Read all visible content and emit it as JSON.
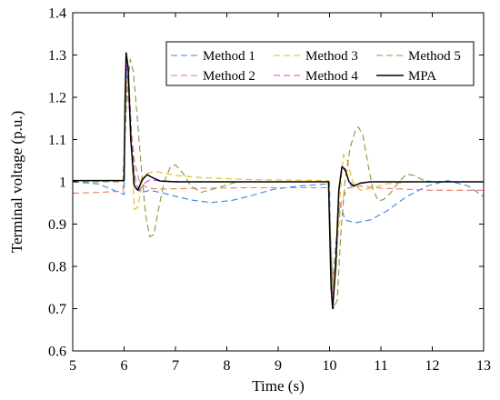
{
  "chart_data": {
    "type": "line",
    "title": "",
    "xlabel": "Time (s)",
    "ylabel": "Terminal voltage (p.u.)",
    "xlim": [
      5,
      13
    ],
    "ylim": [
      0.6,
      1.4
    ],
    "xticks": [
      "5",
      "6",
      "7",
      "8",
      "9",
      "10",
      "11",
      "12",
      "13"
    ],
    "yticks": [
      "0.6",
      "0.7",
      "0.8",
      "0.9",
      "1",
      "1.1",
      "1.2",
      "1.3",
      "1.4"
    ],
    "grid": false,
    "legend_position": "top-right",
    "series": [
      {
        "name": "Method 1",
        "color": "#3a86d8",
        "dash": "dashed",
        "points": [
          [
            5,
            1.0
          ],
          [
            5.5,
            0.995
          ],
          [
            5.9,
            0.975
          ],
          [
            6.0,
            0.97
          ],
          [
            6.02,
            1.16
          ],
          [
            6.05,
            1.26
          ],
          [
            6.1,
            1.22
          ],
          [
            6.15,
            1.1
          ],
          [
            6.2,
            1.02
          ],
          [
            6.25,
            0.99
          ],
          [
            6.35,
            0.975
          ],
          [
            6.5,
            0.98
          ],
          [
            6.7,
            0.975
          ],
          [
            7.0,
            0.966
          ],
          [
            7.3,
            0.957
          ],
          [
            7.7,
            0.951
          ],
          [
            8.1,
            0.956
          ],
          [
            8.5,
            0.968
          ],
          [
            8.9,
            0.982
          ],
          [
            9.4,
            0.99
          ],
          [
            9.95,
            0.995
          ],
          [
            10.0,
            1.0
          ],
          [
            10.02,
            0.85
          ],
          [
            10.06,
            0.75
          ],
          [
            10.12,
            0.85
          ],
          [
            10.2,
            0.95
          ],
          [
            10.3,
            0.91
          ],
          [
            10.5,
            0.903
          ],
          [
            10.8,
            0.91
          ],
          [
            11.1,
            0.93
          ],
          [
            11.5,
            0.965
          ],
          [
            11.9,
            0.99
          ],
          [
            12.3,
            1.003
          ],
          [
            12.7,
            0.99
          ],
          [
            13.0,
            0.965
          ]
        ]
      },
      {
        "name": "Method 2",
        "color": "#e57a5e",
        "dash": "dashed",
        "points": [
          [
            5,
            0.973
          ],
          [
            5.5,
            0.975
          ],
          [
            5.98,
            0.978
          ],
          [
            6.02,
            1.12
          ],
          [
            6.06,
            1.22
          ],
          [
            6.12,
            1.15
          ],
          [
            6.2,
            1.05
          ],
          [
            6.3,
            1.0
          ],
          [
            6.45,
            0.985
          ],
          [
            6.7,
            0.983
          ],
          [
            7.5,
            0.985
          ],
          [
            8.5,
            0.986
          ],
          [
            9.5,
            0.986
          ],
          [
            9.98,
            0.986
          ],
          [
            10.02,
            0.85
          ],
          [
            10.07,
            0.76
          ],
          [
            10.13,
            0.83
          ],
          [
            10.22,
            0.95
          ],
          [
            10.35,
            0.985
          ],
          [
            10.6,
            0.99
          ],
          [
            11.0,
            0.985
          ],
          [
            12.0,
            0.98
          ],
          [
            13.0,
            0.98
          ]
        ]
      },
      {
        "name": "Method 3",
        "color": "#e8b820",
        "dash": "dashed",
        "points": [
          [
            5,
            1.0
          ],
          [
            5.98,
            1.0
          ],
          [
            6.02,
            1.1
          ],
          [
            6.06,
            1.24
          ],
          [
            6.1,
            1.2
          ],
          [
            6.15,
            1.06
          ],
          [
            6.2,
            0.935
          ],
          [
            6.27,
            0.94
          ],
          [
            6.35,
            1.0
          ],
          [
            6.45,
            1.02
          ],
          [
            6.6,
            1.025
          ],
          [
            6.8,
            1.02
          ],
          [
            7.0,
            1.015
          ],
          [
            7.5,
            1.01
          ],
          [
            8.5,
            1.005
          ],
          [
            9.98,
            1.003
          ],
          [
            10.02,
            0.88
          ],
          [
            10.07,
            0.75
          ],
          [
            10.13,
            0.8
          ],
          [
            10.2,
            0.96
          ],
          [
            10.27,
            1.065
          ],
          [
            10.35,
            1.05
          ],
          [
            10.45,
            1.0
          ],
          [
            10.6,
            0.98
          ],
          [
            10.8,
            0.985
          ],
          [
            11.1,
            0.995
          ],
          [
            11.6,
            1.0
          ],
          [
            13.0,
            1.0
          ]
        ]
      },
      {
        "name": "Method 4",
        "color": "#c84cc8",
        "dash": "dashed",
        "points": [
          [
            5,
            1.0
          ],
          [
            5.98,
            1.0
          ],
          [
            6.02,
            1.15
          ],
          [
            6.05,
            1.28
          ],
          [
            6.1,
            1.22
          ],
          [
            6.15,
            1.08
          ],
          [
            6.2,
            0.99
          ],
          [
            6.28,
            0.975
          ],
          [
            6.38,
            0.995
          ],
          [
            6.5,
            1.005
          ],
          [
            6.7,
            1.002
          ],
          [
            7.2,
            1.0
          ],
          [
            9.98,
            1.0
          ],
          [
            10.02,
            0.85
          ],
          [
            10.06,
            0.72
          ],
          [
            10.12,
            0.79
          ],
          [
            10.18,
            0.97
          ],
          [
            10.24,
            1.04
          ],
          [
            10.32,
            1.02
          ],
          [
            10.42,
            0.99
          ],
          [
            10.55,
            0.995
          ],
          [
            10.8,
            1.0
          ],
          [
            13.0,
            1.0
          ]
        ]
      },
      {
        "name": "Method 5",
        "color": "#7f9a3c",
        "dash": "dashed",
        "points": [
          [
            5,
            1.0
          ],
          [
            5.98,
            1.0
          ],
          [
            6.02,
            1.12
          ],
          [
            6.06,
            1.21
          ],
          [
            6.12,
            1.29
          ],
          [
            6.18,
            1.26
          ],
          [
            6.25,
            1.16
          ],
          [
            6.33,
            1.04
          ],
          [
            6.42,
            0.92
          ],
          [
            6.5,
            0.87
          ],
          [
            6.58,
            0.875
          ],
          [
            6.67,
            0.935
          ],
          [
            6.78,
            1.0
          ],
          [
            6.9,
            1.035
          ],
          [
            7.0,
            1.04
          ],
          [
            7.15,
            1.02
          ],
          [
            7.3,
            0.99
          ],
          [
            7.5,
            0.975
          ],
          [
            7.8,
            0.985
          ],
          [
            8.2,
            1.0
          ],
          [
            9.98,
            1.0
          ],
          [
            10.02,
            0.86
          ],
          [
            10.08,
            0.7
          ],
          [
            10.15,
            0.72
          ],
          [
            10.22,
            0.88
          ],
          [
            10.3,
            1.0
          ],
          [
            10.4,
            1.08
          ],
          [
            10.5,
            1.12
          ],
          [
            10.56,
            1.13
          ],
          [
            10.65,
            1.11
          ],
          [
            10.75,
            1.04
          ],
          [
            10.85,
            0.98
          ],
          [
            10.95,
            0.955
          ],
          [
            11.05,
            0.958
          ],
          [
            11.2,
            0.975
          ],
          [
            11.35,
            1.0
          ],
          [
            11.5,
            1.018
          ],
          [
            11.65,
            1.015
          ],
          [
            11.8,
            1.005
          ],
          [
            12.0,
            1.0
          ],
          [
            13.0,
            1.0
          ]
        ]
      },
      {
        "name": "MPA",
        "color": "#000000",
        "dash": "solid",
        "points": [
          [
            5,
            1.003
          ],
          [
            5.98,
            1.003
          ],
          [
            6.0,
            1.003
          ],
          [
            6.02,
            1.2
          ],
          [
            6.04,
            1.305
          ],
          [
            6.08,
            1.27
          ],
          [
            6.13,
            1.1
          ],
          [
            6.2,
            0.99
          ],
          [
            6.27,
            0.98
          ],
          [
            6.35,
            1.005
          ],
          [
            6.45,
            1.017
          ],
          [
            6.55,
            1.01
          ],
          [
            6.7,
            1.002
          ],
          [
            7.0,
            1.0
          ],
          [
            9.98,
            1.0
          ],
          [
            10.0,
            0.9
          ],
          [
            10.03,
            0.75
          ],
          [
            10.06,
            0.7
          ],
          [
            10.12,
            0.8
          ],
          [
            10.18,
            0.98
          ],
          [
            10.24,
            1.035
          ],
          [
            10.3,
            1.03
          ],
          [
            10.38,
            1.0
          ],
          [
            10.47,
            0.99
          ],
          [
            10.6,
            0.997
          ],
          [
            10.8,
            1.0
          ],
          [
            13.0,
            1.0
          ]
        ]
      }
    ]
  }
}
